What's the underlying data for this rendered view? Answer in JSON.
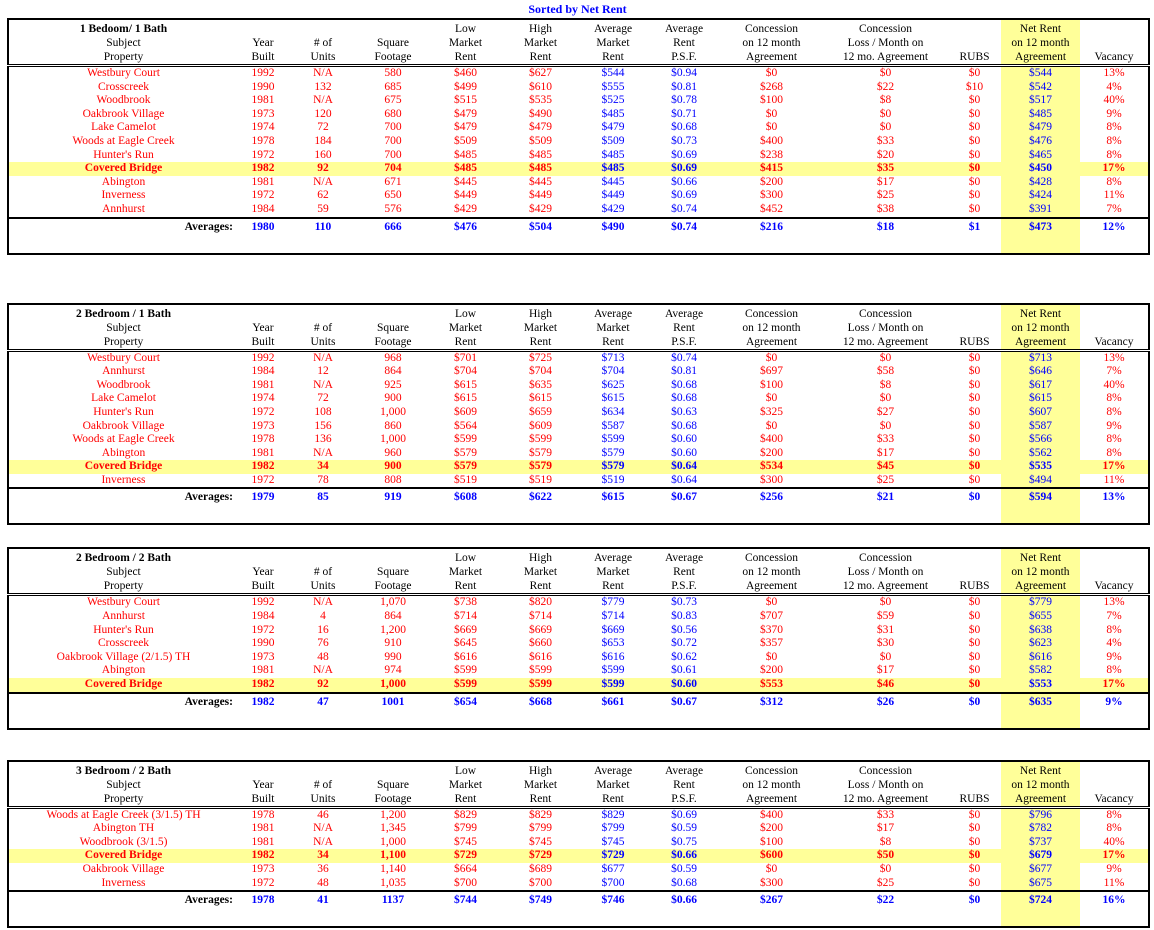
{
  "title": "Sorted by Net Rent",
  "colors": {
    "data_red": "#FF0000",
    "data_blue": "#0000FF",
    "highlight_yellow": "#FFFF99",
    "header_black": "#000000"
  },
  "averages_label": "Averages:",
  "columns": {
    "property": [
      "",
      "Subject",
      "Property"
    ],
    "year": [
      "",
      "Year",
      "Built"
    ],
    "units": [
      "",
      "# of",
      "Units"
    ],
    "sqft": [
      "",
      "Square",
      "Footage"
    ],
    "low": [
      "Low",
      "Market",
      "Rent"
    ],
    "high": [
      "High",
      "Market",
      "Rent"
    ],
    "avg": [
      "Average",
      "Market",
      "Rent"
    ],
    "psf": [
      "Average",
      "Rent",
      "P.S.F."
    ],
    "concession": [
      "Concession",
      "on 12 month",
      "Agreement"
    ],
    "loss": [
      "Concession",
      "Loss / Month on",
      "12 mo. Agreement"
    ],
    "rubs": [
      "",
      "",
      "RUBS"
    ],
    "net": [
      "Net Rent",
      "on 12 month",
      "Agreement"
    ],
    "vacancy": [
      "",
      "",
      "Vacancy"
    ]
  },
  "tables": [
    {
      "group": "1 Bedoom/ 1 Bath",
      "rows": [
        {
          "property": "Westbury Court",
          "year": "1992",
          "units": "N/A",
          "sqft": "580",
          "low": "$460",
          "high": "$627",
          "avg": "$544",
          "psf": "$0.94",
          "concession": "$0",
          "loss": "$0",
          "rubs": "$0",
          "net": "$544",
          "vacancy": "13%",
          "highlight": false
        },
        {
          "property": "Crosscreek",
          "year": "1990",
          "units": "132",
          "sqft": "685",
          "low": "$499",
          "high": "$610",
          "avg": "$555",
          "psf": "$0.81",
          "concession": "$268",
          "loss": "$22",
          "rubs": "$10",
          "net": "$542",
          "vacancy": "4%",
          "highlight": false
        },
        {
          "property": "Woodbrook",
          "year": "1981",
          "units": "N/A",
          "sqft": "675",
          "low": "$515",
          "high": "$535",
          "avg": "$525",
          "psf": "$0.78",
          "concession": "$100",
          "loss": "$8",
          "rubs": "$0",
          "net": "$517",
          "vacancy": "40%",
          "highlight": false
        },
        {
          "property": "Oakbrook Village",
          "year": "1973",
          "units": "120",
          "sqft": "680",
          "low": "$479",
          "high": "$490",
          "avg": "$485",
          "psf": "$0.71",
          "concession": "$0",
          "loss": "$0",
          "rubs": "$0",
          "net": "$485",
          "vacancy": "9%",
          "highlight": false
        },
        {
          "property": "Lake Camelot",
          "year": "1974",
          "units": "72",
          "sqft": "700",
          "low": "$479",
          "high": "$479",
          "avg": "$479",
          "psf": "$0.68",
          "concession": "$0",
          "loss": "$0",
          "rubs": "$0",
          "net": "$479",
          "vacancy": "8%",
          "highlight": false
        },
        {
          "property": "Woods at Eagle Creek",
          "year": "1978",
          "units": "184",
          "sqft": "700",
          "low": "$509",
          "high": "$509",
          "avg": "$509",
          "psf": "$0.73",
          "concession": "$400",
          "loss": "$33",
          "rubs": "$0",
          "net": "$476",
          "vacancy": "8%",
          "highlight": false
        },
        {
          "property": "Hunter's Run",
          "year": "1972",
          "units": "160",
          "sqft": "700",
          "low": "$485",
          "high": "$485",
          "avg": "$485",
          "psf": "$0.69",
          "concession": "$238",
          "loss": "$20",
          "rubs": "$0",
          "net": "$465",
          "vacancy": "8%",
          "highlight": false
        },
        {
          "property": "Covered Bridge",
          "year": "1982",
          "units": "92",
          "sqft": "704",
          "low": "$485",
          "high": "$485",
          "avg": "$485",
          "psf": "$0.69",
          "concession": "$415",
          "loss": "$35",
          "rubs": "$0",
          "net": "$450",
          "vacancy": "17%",
          "highlight": true
        },
        {
          "property": "Abington",
          "year": "1981",
          "units": "N/A",
          "sqft": "671",
          "low": "$445",
          "high": "$445",
          "avg": "$445",
          "psf": "$0.66",
          "concession": "$200",
          "loss": "$17",
          "rubs": "$0",
          "net": "$428",
          "vacancy": "8%",
          "highlight": false
        },
        {
          "property": "Inverness",
          "year": "1972",
          "units": "62",
          "sqft": "650",
          "low": "$449",
          "high": "$449",
          "avg": "$449",
          "psf": "$0.69",
          "concession": "$300",
          "loss": "$25",
          "rubs": "$0",
          "net": "$424",
          "vacancy": "11%",
          "highlight": false
        },
        {
          "property": "Annhurst",
          "year": "1984",
          "units": "59",
          "sqft": "576",
          "low": "$429",
          "high": "$429",
          "avg": "$429",
          "psf": "$0.74",
          "concession": "$452",
          "loss": "$38",
          "rubs": "$0",
          "net": "$391",
          "vacancy": "7%",
          "highlight": false
        }
      ],
      "averages": {
        "year": "1980",
        "units": "110",
        "sqft": "666",
        "low": "$476",
        "high": "$504",
        "avg": "$490",
        "psf": "$0.74",
        "concession": "$216",
        "loss": "$18",
        "rubs": "$1",
        "net": "$473",
        "vacancy": "12%"
      }
    },
    {
      "group": "2 Bedroom / 1 Bath",
      "rows": [
        {
          "property": "Westbury Court",
          "year": "1992",
          "units": "N/A",
          "sqft": "968",
          "low": "$701",
          "high": "$725",
          "avg": "$713",
          "psf": "$0.74",
          "concession": "$0",
          "loss": "$0",
          "rubs": "$0",
          "net": "$713",
          "vacancy": "13%",
          "highlight": false
        },
        {
          "property": "Annhurst",
          "year": "1984",
          "units": "12",
          "sqft": "864",
          "low": "$704",
          "high": "$704",
          "avg": "$704",
          "psf": "$0.81",
          "concession": "$697",
          "loss": "$58",
          "rubs": "$0",
          "net": "$646",
          "vacancy": "7%",
          "highlight": false
        },
        {
          "property": "Woodbrook",
          "year": "1981",
          "units": "N/A",
          "sqft": "925",
          "low": "$615",
          "high": "$635",
          "avg": "$625",
          "psf": "$0.68",
          "concession": "$100",
          "loss": "$8",
          "rubs": "$0",
          "net": "$617",
          "vacancy": "40%",
          "highlight": false
        },
        {
          "property": "Lake Camelot",
          "year": "1974",
          "units": "72",
          "sqft": "900",
          "low": "$615",
          "high": "$615",
          "avg": "$615",
          "psf": "$0.68",
          "concession": "$0",
          "loss": "$0",
          "rubs": "$0",
          "net": "$615",
          "vacancy": "8%",
          "highlight": false
        },
        {
          "property": "Hunter's Run",
          "year": "1972",
          "units": "108",
          "sqft": "1,000",
          "low": "$609",
          "high": "$659",
          "avg": "$634",
          "psf": "$0.63",
          "concession": "$325",
          "loss": "$27",
          "rubs": "$0",
          "net": "$607",
          "vacancy": "8%",
          "highlight": false
        },
        {
          "property": "Oakbrook Village",
          "year": "1973",
          "units": "156",
          "sqft": "860",
          "low": "$564",
          "high": "$609",
          "avg": "$587",
          "psf": "$0.68",
          "concession": "$0",
          "loss": "$0",
          "rubs": "$0",
          "net": "$587",
          "vacancy": "9%",
          "highlight": false
        },
        {
          "property": "Woods at Eagle Creek",
          "year": "1978",
          "units": "136",
          "sqft": "1,000",
          "low": "$599",
          "high": "$599",
          "avg": "$599",
          "psf": "$0.60",
          "concession": "$400",
          "loss": "$33",
          "rubs": "$0",
          "net": "$566",
          "vacancy": "8%",
          "highlight": false
        },
        {
          "property": "Abington",
          "year": "1981",
          "units": "N/A",
          "sqft": "960",
          "low": "$579",
          "high": "$579",
          "avg": "$579",
          "psf": "$0.60",
          "concession": "$200",
          "loss": "$17",
          "rubs": "$0",
          "net": "$562",
          "vacancy": "8%",
          "highlight": false
        },
        {
          "property": "Covered Bridge",
          "year": "1982",
          "units": "34",
          "sqft": "900",
          "low": "$579",
          "high": "$579",
          "avg": "$579",
          "psf": "$0.64",
          "concession": "$534",
          "loss": "$45",
          "rubs": "$0",
          "net": "$535",
          "vacancy": "17%",
          "highlight": true
        },
        {
          "property": "Inverness",
          "year": "1972",
          "units": "78",
          "sqft": "808",
          "low": "$519",
          "high": "$519",
          "avg": "$519",
          "psf": "$0.64",
          "concession": "$300",
          "loss": "$25",
          "rubs": "$0",
          "net": "$494",
          "vacancy": "11%",
          "highlight": false
        }
      ],
      "averages": {
        "year": "1979",
        "units": "85",
        "sqft": "919",
        "low": "$608",
        "high": "$622",
        "avg": "$615",
        "psf": "$0.67",
        "concession": "$256",
        "loss": "$21",
        "rubs": "$0",
        "net": "$594",
        "vacancy": "13%"
      }
    },
    {
      "group": "2 Bedroom / 2 Bath",
      "rows": [
        {
          "property": "Westbury Court",
          "year": "1992",
          "units": "N/A",
          "sqft": "1,070",
          "low": "$738",
          "high": "$820",
          "avg": "$779",
          "psf": "$0.73",
          "concession": "$0",
          "loss": "$0",
          "rubs": "$0",
          "net": "$779",
          "vacancy": "13%",
          "highlight": false
        },
        {
          "property": "Annhurst",
          "year": "1984",
          "units": "4",
          "sqft": "864",
          "low": "$714",
          "high": "$714",
          "avg": "$714",
          "psf": "$0.83",
          "concession": "$707",
          "loss": "$59",
          "rubs": "$0",
          "net": "$655",
          "vacancy": "7%",
          "highlight": false
        },
        {
          "property": "Hunter's Run",
          "year": "1972",
          "units": "16",
          "sqft": "1,200",
          "low": "$669",
          "high": "$669",
          "avg": "$669",
          "psf": "$0.56",
          "concession": "$370",
          "loss": "$31",
          "rubs": "$0",
          "net": "$638",
          "vacancy": "8%",
          "highlight": false
        },
        {
          "property": "Crosscreek",
          "year": "1990",
          "units": "76",
          "sqft": "910",
          "low": "$645",
          "high": "$660",
          "avg": "$653",
          "psf": "$0.72",
          "concession": "$357",
          "loss": "$30",
          "rubs": "$0",
          "net": "$623",
          "vacancy": "4%",
          "highlight": false
        },
        {
          "property": "Oakbrook Village (2/1.5) TH",
          "year": "1973",
          "units": "48",
          "sqft": "990",
          "low": "$616",
          "high": "$616",
          "avg": "$616",
          "psf": "$0.62",
          "concession": "$0",
          "loss": "$0",
          "rubs": "$0",
          "net": "$616",
          "vacancy": "9%",
          "highlight": false
        },
        {
          "property": "Abington",
          "year": "1981",
          "units": "N/A",
          "sqft": "974",
          "low": "$599",
          "high": "$599",
          "avg": "$599",
          "psf": "$0.61",
          "concession": "$200",
          "loss": "$17",
          "rubs": "$0",
          "net": "$582",
          "vacancy": "8%",
          "highlight": false
        },
        {
          "property": "Covered Bridge",
          "year": "1982",
          "units": "92",
          "sqft": "1,000",
          "low": "$599",
          "high": "$599",
          "avg": "$599",
          "psf": "$0.60",
          "concession": "$553",
          "loss": "$46",
          "rubs": "$0",
          "net": "$553",
          "vacancy": "17%",
          "highlight": true
        }
      ],
      "averages": {
        "year": "1982",
        "units": "47",
        "sqft": "1001",
        "low": "$654",
        "high": "$668",
        "avg": "$661",
        "psf": "$0.67",
        "concession": "$312",
        "loss": "$26",
        "rubs": "$0",
        "net": "$635",
        "vacancy": "9%"
      }
    },
    {
      "group": "3 Bedroom / 2 Bath",
      "rows": [
        {
          "property": "Woods at Eagle Creek (3/1.5) TH",
          "year": "1978",
          "units": "46",
          "sqft": "1,200",
          "low": "$829",
          "high": "$829",
          "avg": "$829",
          "psf": "$0.69",
          "concession": "$400",
          "loss": "$33",
          "rubs": "$0",
          "net": "$796",
          "vacancy": "8%",
          "highlight": false
        },
        {
          "property": "Abington TH",
          "year": "1981",
          "units": "N/A",
          "sqft": "1,345",
          "low": "$799",
          "high": "$799",
          "avg": "$799",
          "psf": "$0.59",
          "concession": "$200",
          "loss": "$17",
          "rubs": "$0",
          "net": "$782",
          "vacancy": "8%",
          "highlight": false
        },
        {
          "property": "Woodbrook (3/1.5)",
          "year": "1981",
          "units": "N/A",
          "sqft": "1,000",
          "low": "$745",
          "high": "$745",
          "avg": "$745",
          "psf": "$0.75",
          "concession": "$100",
          "loss": "$8",
          "rubs": "$0",
          "net": "$737",
          "vacancy": "40%",
          "highlight": false
        },
        {
          "property": "Covered Bridge",
          "year": "1982",
          "units": "34",
          "sqft": "1,100",
          "low": "$729",
          "high": "$729",
          "avg": "$729",
          "psf": "$0.66",
          "concession": "$600",
          "loss": "$50",
          "rubs": "$0",
          "net": "$679",
          "vacancy": "17%",
          "highlight": true
        },
        {
          "property": "Oakbrook Village",
          "year": "1973",
          "units": "36",
          "sqft": "1,140",
          "low": "$664",
          "high": "$689",
          "avg": "$677",
          "psf": "$0.59",
          "concession": "$0",
          "loss": "$0",
          "rubs": "$0",
          "net": "$677",
          "vacancy": "9%",
          "highlight": false
        },
        {
          "property": "Inverness",
          "year": "1972",
          "units": "48",
          "sqft": "1,035",
          "low": "$700",
          "high": "$700",
          "avg": "$700",
          "psf": "$0.68",
          "concession": "$300",
          "loss": "$25",
          "rubs": "$0",
          "net": "$675",
          "vacancy": "11%",
          "highlight": false
        }
      ],
      "averages": {
        "year": "1978",
        "units": "41",
        "sqft": "1137",
        "low": "$744",
        "high": "$749",
        "avg": "$746",
        "psf": "$0.66",
        "concession": "$267",
        "loss": "$22",
        "rubs": "$0",
        "net": "$724",
        "vacancy": "16%"
      }
    }
  ]
}
